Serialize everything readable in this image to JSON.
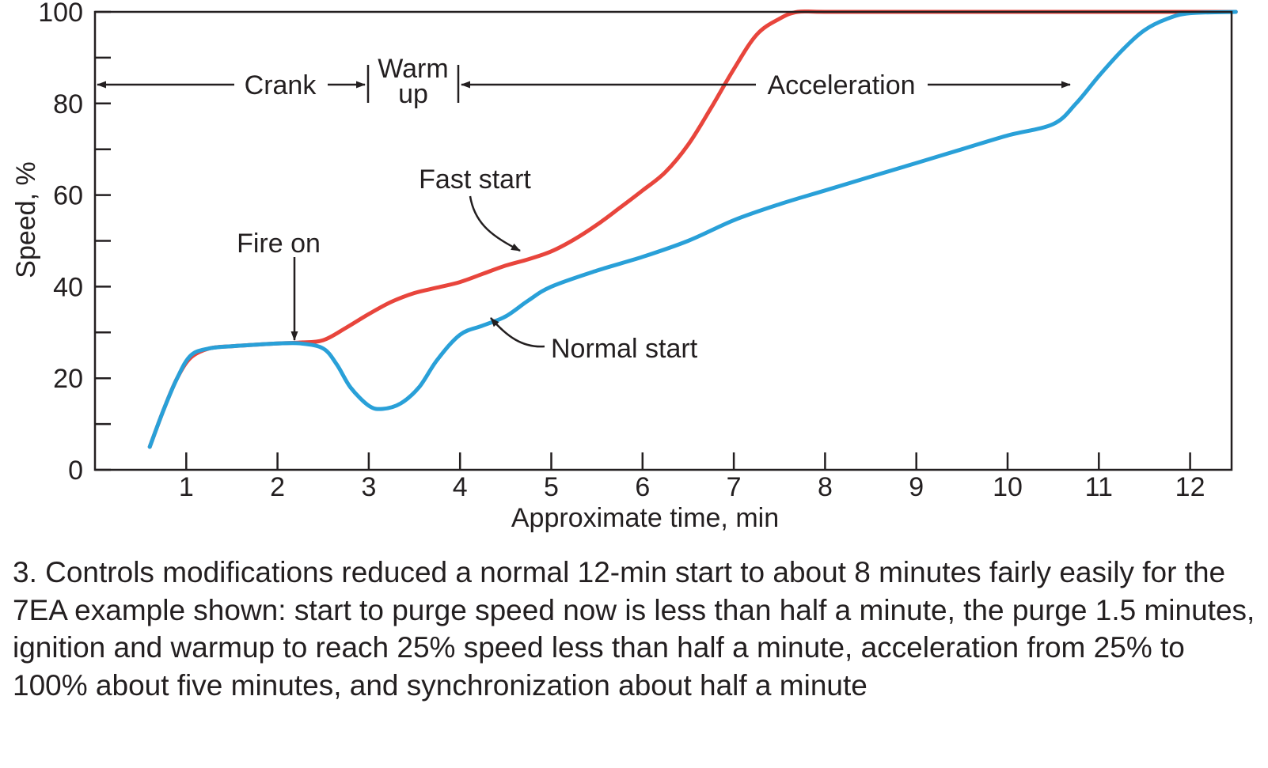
{
  "chart_data": {
    "type": "line",
    "title": "",
    "xlabel": "Approximate time, min",
    "ylabel": "Speed, %",
    "xlim": [
      0,
      12.5
    ],
    "ylim": [
      0,
      100
    ],
    "x_ticks": [
      1,
      2,
      3,
      4,
      5,
      6,
      7,
      8,
      9,
      10,
      11,
      12
    ],
    "y_ticks": [
      0,
      20,
      40,
      60,
      80,
      100
    ],
    "y_minor_ticks": [
      10,
      30,
      50,
      70,
      90
    ],
    "grid": false,
    "legend": "none",
    "series": [
      {
        "name": "Fast start",
        "color": "#e8453c",
        "x": [
          0.6,
          0.75,
          0.9,
          1.05,
          1.25,
          1.5,
          1.75,
          2.0,
          2.25,
          2.5,
          2.75,
          3.0,
          3.25,
          3.5,
          3.75,
          4.0,
          4.25,
          4.5,
          4.75,
          5.0,
          5.25,
          5.5,
          5.75,
          6.0,
          6.25,
          6.5,
          6.75,
          7.0,
          7.25,
          7.5,
          7.7,
          8.0,
          9.0,
          10.0,
          11.0,
          12.0,
          12.5
        ],
        "y": [
          5,
          13,
          20,
          24.5,
          26.5,
          27,
          27.3,
          27.6,
          27.8,
          28.3,
          31,
          34,
          36.7,
          38.6,
          39.8,
          41,
          42.8,
          44.6,
          46,
          47.7,
          50.3,
          53.5,
          57.2,
          61,
          65,
          71,
          79,
          87.5,
          95,
          98.5,
          100,
          100,
          100,
          100,
          100,
          100,
          100
        ]
      },
      {
        "name": "Normal start",
        "color": "#29a0d8",
        "x": [
          0.6,
          0.75,
          0.9,
          1.05,
          1.25,
          1.5,
          1.75,
          2.0,
          2.25,
          2.5,
          2.65,
          2.8,
          3.0,
          3.15,
          3.35,
          3.55,
          3.75,
          4.0,
          4.25,
          4.5,
          4.75,
          5.0,
          5.5,
          6.0,
          6.5,
          7.0,
          7.5,
          8.0,
          8.5,
          9.0,
          9.5,
          10.0,
          10.5,
          10.75,
          11.0,
          11.25,
          11.5,
          11.75,
          12.0,
          12.5
        ],
        "y": [
          5,
          13,
          20,
          25,
          26.5,
          27,
          27.3,
          27.6,
          27.6,
          26.5,
          23,
          18,
          14,
          13.3,
          14.5,
          18,
          24,
          29.5,
          31.5,
          33.5,
          37,
          40,
          43.5,
          46.5,
          50,
          54.5,
          58,
          61,
          64,
          67,
          70,
          73,
          75.5,
          80,
          86,
          91.5,
          96,
          98.5,
          99.7,
          100
        ]
      }
    ],
    "annotations": {
      "fast_start": "Fast start",
      "normal_start": "Normal start",
      "fire_on": "Fire on",
      "crank": "Crank",
      "warm": "Warm",
      "up": "up",
      "acceleration": "Acceleration"
    }
  },
  "caption": "3. Controls modifications reduced a normal 12-min start to about 8 minutes fairly easily for the 7EA example shown: start to purge speed now is less than half a minute, the purge 1.5 minutes, ignition and warmup to reach 25% speed less than half a minute, acceleration from 25% to 100% about five minutes, and synchronization about half a minute"
}
